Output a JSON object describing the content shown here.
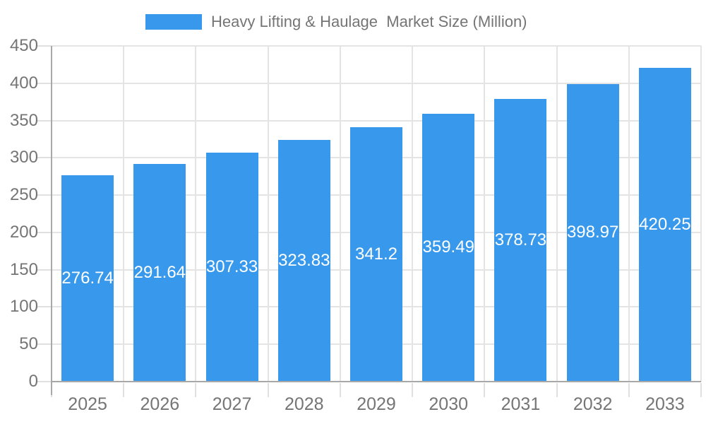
{
  "legend": {
    "label": "Heavy Lifting & Haulage  Market Size (Million)"
  },
  "chart_data": {
    "type": "bar",
    "title": "Heavy Lifting & Haulage  Market Size (Million)",
    "categories": [
      "2025",
      "2026",
      "2027",
      "2028",
      "2029",
      "2030",
      "2031",
      "2032",
      "2033"
    ],
    "values": [
      276.74,
      291.64,
      307.33,
      323.83,
      341.2,
      359.49,
      378.73,
      398.97,
      420.25
    ],
    "value_labels": [
      "276.74",
      "291.64",
      "307.33",
      "323.83",
      "341.2",
      "359.49",
      "378.73",
      "398.97",
      "420.25"
    ],
    "xlabel": "",
    "ylabel": "",
    "ylim": [
      0,
      450
    ],
    "ytick_step": 50,
    "ytick_labels": [
      "0",
      "50",
      "100",
      "150",
      "200",
      "250",
      "300",
      "350",
      "400",
      "450"
    ],
    "grid": true,
    "legend_position": "top",
    "value_label_position": "center-inside",
    "colors": {
      "bar": "#3899EC",
      "grid": "#E4E4E4",
      "tick": "#E0E0E0",
      "axis": "#A8A8A8",
      "text": "#757575",
      "value_label": "#FFFFFF",
      "background": "#FFFFFF"
    }
  }
}
